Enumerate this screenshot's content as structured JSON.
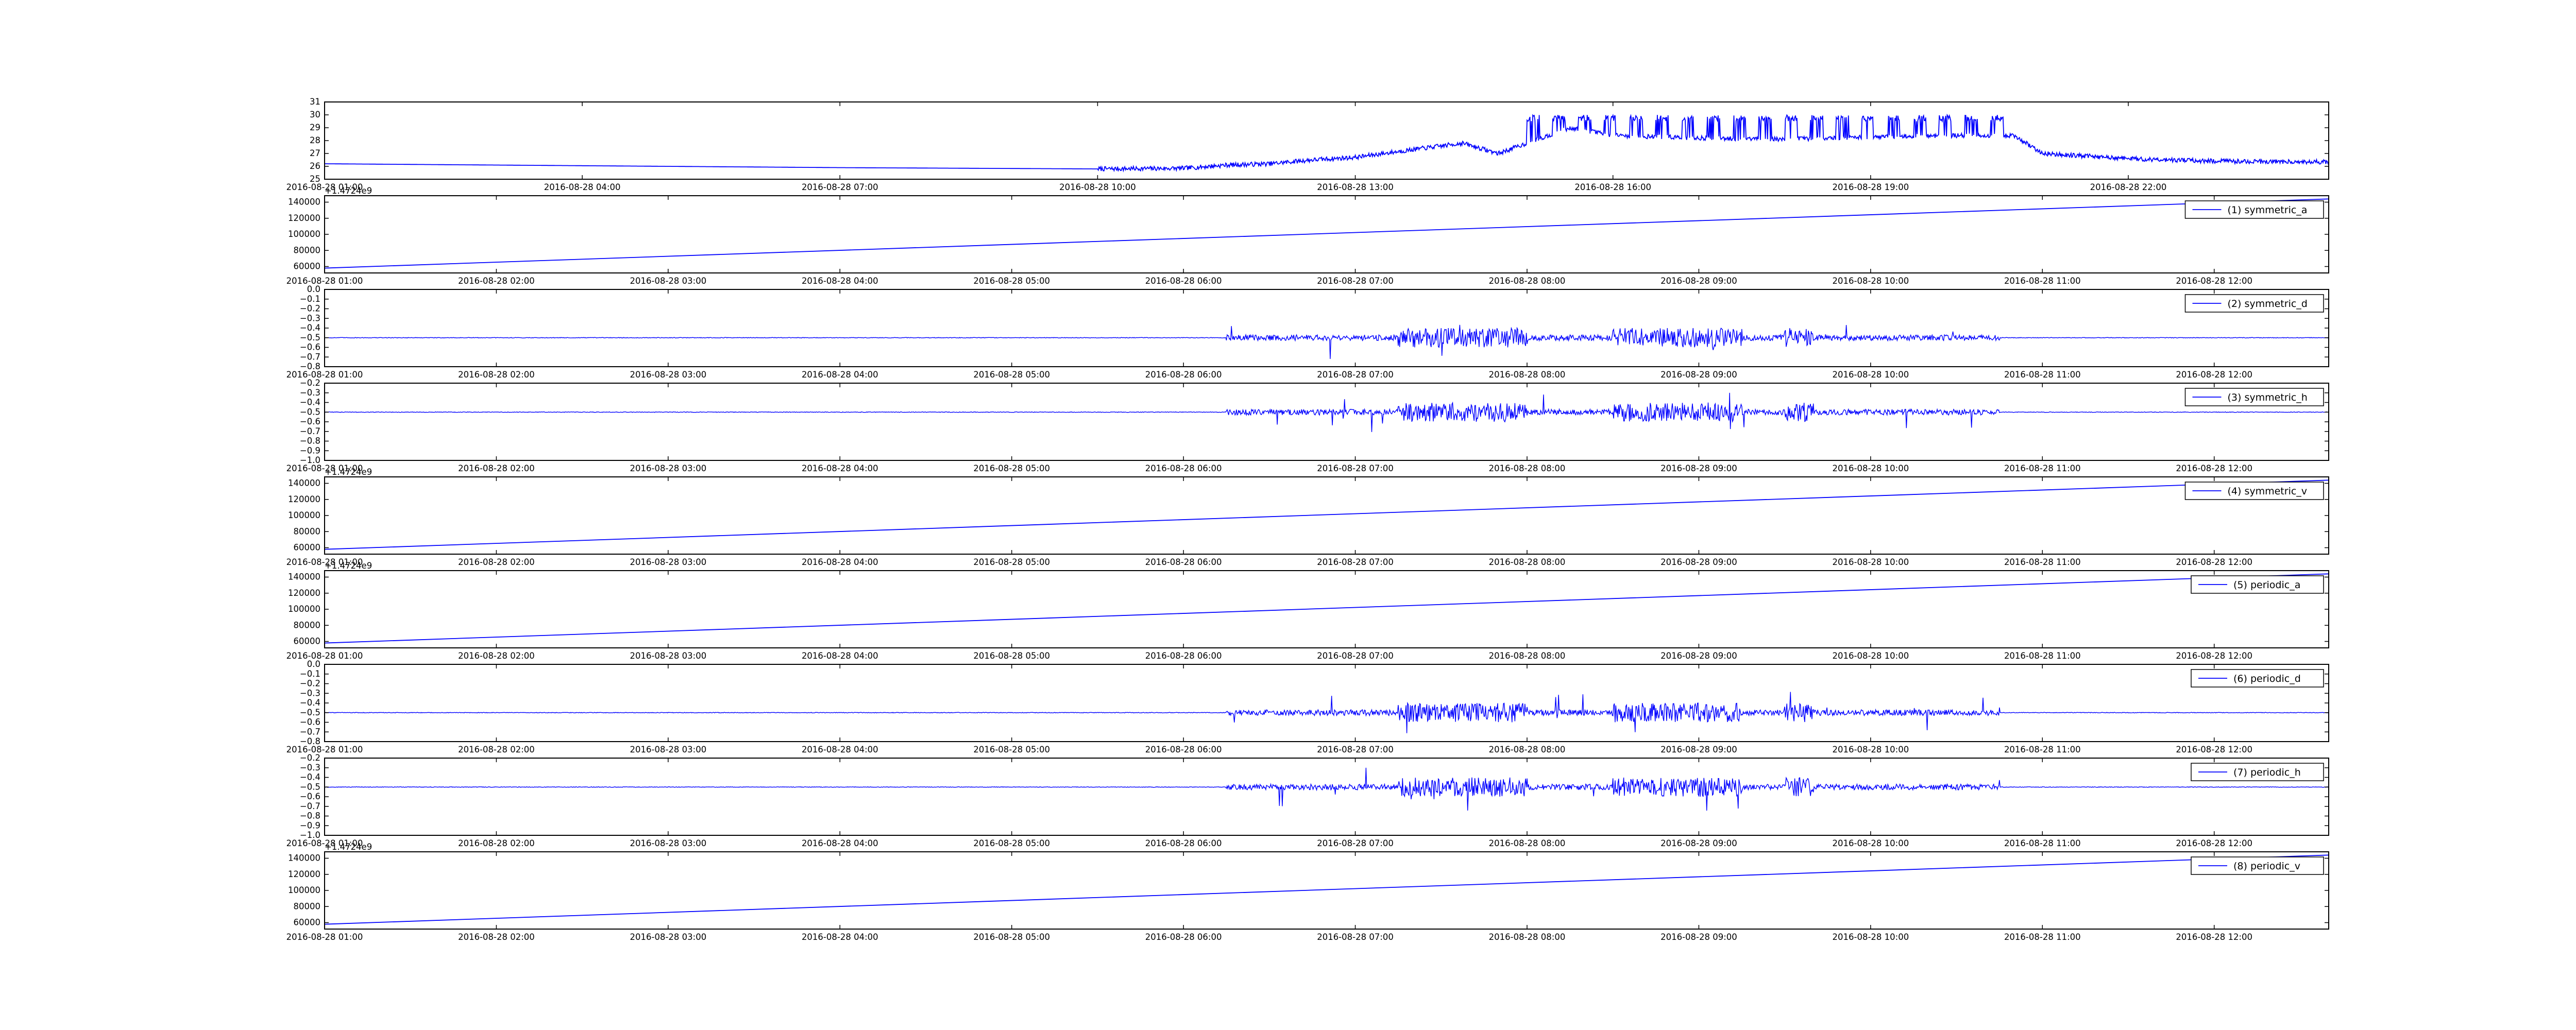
{
  "figure": {
    "line_color": "#0000ff",
    "background": "#ffffff",
    "axis_color": "#000000",
    "grid": false,
    "legend_loc": "upper right"
  },
  "chart_data": [
    {
      "type": "line",
      "series_name": "",
      "ylim": [
        25,
        31
      ],
      "yticks": [
        25,
        26,
        27,
        28,
        29,
        30,
        31
      ],
      "ytick_labels": [
        "25",
        "26",
        "27",
        "28",
        "29",
        "30",
        "31"
      ],
      "y_offset_label": "",
      "xlim": [
        "2016-08-28 01:00",
        "2016-08-28 24:20"
      ],
      "xticks": [
        "2016-08-28 01:00",
        "2016-08-28 04:00",
        "2016-08-28 07:00",
        "2016-08-28 10:00",
        "2016-08-28 13:00",
        "2016-08-28 16:00",
        "2016-08-28 19:00",
        "2016-08-28 22:00"
      ],
      "shape": "temperature",
      "points": [
        [
          "2016-08-28 01:00",
          26.2
        ],
        [
          "2016-08-28 04:00",
          26.05
        ],
        [
          "2016-08-28 07:00",
          25.9
        ],
        [
          "2016-08-28 10:00",
          25.8
        ],
        [
          "2016-08-28 11:00",
          25.85
        ],
        [
          "2016-08-28 11:30",
          26.1
        ],
        [
          "2016-08-28 12:00",
          26.2
        ],
        [
          "2016-08-28 12:30",
          26.5
        ],
        [
          "2016-08-28 13:00",
          26.7
        ],
        [
          "2016-08-28 13:40",
          27.3
        ],
        [
          "2016-08-28 14:15",
          27.8
        ],
        [
          "2016-08-28 14:40",
          27.0
        ],
        [
          "2016-08-28 15:30",
          29.0
        ],
        [
          "2016-08-28 16:00",
          28.4
        ],
        [
          "2016-08-28 17:00",
          28.2
        ],
        [
          "2016-08-28 18:00",
          28.1
        ],
        [
          "2016-08-28 19:00",
          28.3
        ],
        [
          "2016-08-28 20:00",
          28.4
        ],
        [
          "2016-08-28 20:40",
          28.4
        ],
        [
          "2016-08-28 21:00",
          27.0
        ],
        [
          "2016-08-28 22:00",
          26.6
        ],
        [
          "2016-08-28 23:00",
          26.4
        ],
        [
          "2016-08-28 24:20",
          26.35
        ]
      ],
      "spike_window": [
        "2016-08-28 15:00",
        "2016-08-28 20:40"
      ],
      "spike_peak": 30.0
    },
    {
      "type": "line",
      "series_name": "(1) symmetric_a",
      "ylim": [
        52000,
        148000
      ],
      "yticks": [
        60000,
        80000,
        100000,
        120000,
        140000
      ],
      "ytick_labels": [
        "60000",
        "80000",
        "100000",
        "120000",
        "140000"
      ],
      "y_offset_label": "+1.4724e9",
      "xlim": [
        "2016-08-28 01:00",
        "2016-08-28 12:40"
      ],
      "xticks": [
        "2016-08-28 01:00",
        "2016-08-28 02:00",
        "2016-08-28 03:00",
        "2016-08-28 04:00",
        "2016-08-28 05:00",
        "2016-08-28 06:00",
        "2016-08-28 07:00",
        "2016-08-28 08:00",
        "2016-08-28 09:00",
        "2016-08-28 10:00",
        "2016-08-28 11:00",
        "2016-08-28 12:00"
      ],
      "shape": "ramp",
      "points": [
        [
          "2016-08-28 01:00",
          58000
        ],
        [
          "2016-08-28 12:40",
          144000
        ]
      ]
    },
    {
      "type": "line",
      "series_name": "(2) symmetric_d",
      "ylim": [
        -0.8,
        0.0
      ],
      "yticks": [
        -0.8,
        -0.7,
        -0.6,
        -0.5,
        -0.4,
        -0.3,
        -0.2,
        -0.1,
        0.0
      ],
      "ytick_labels": [
        "−0.8",
        "−0.7",
        "−0.6",
        "−0.5",
        "−0.4",
        "−0.3",
        "−0.2",
        "−0.1",
        "0.0"
      ],
      "y_offset_label": "",
      "xlim": [
        "2016-08-28 01:00",
        "2016-08-28 12:40"
      ],
      "xticks": [
        "2016-08-28 01:00",
        "2016-08-28 02:00",
        "2016-08-28 03:00",
        "2016-08-28 04:00",
        "2016-08-28 05:00",
        "2016-08-28 06:00",
        "2016-08-28 07:00",
        "2016-08-28 08:00",
        "2016-08-28 09:00",
        "2016-08-28 10:00",
        "2016-08-28 11:00",
        "2016-08-28 12:00"
      ],
      "shape": "noise",
      "baseline": -0.5,
      "noise_window": [
        "2016-08-28 06:15",
        "2016-08-28 10:45"
      ],
      "range": [
        -0.72,
        -0.12
      ]
    },
    {
      "type": "line",
      "series_name": "(3) symmetric_h",
      "ylim": [
        -1.0,
        -0.2
      ],
      "yticks": [
        -1.0,
        -0.9,
        -0.8,
        -0.7,
        -0.6,
        -0.5,
        -0.4,
        -0.3,
        -0.2
      ],
      "ytick_labels": [
        "−1.0",
        "−0.9",
        "−0.8",
        "−0.7",
        "−0.6",
        "−0.5",
        "−0.4",
        "−0.3",
        "−0.2"
      ],
      "y_offset_label": "",
      "xlim": [
        "2016-08-28 01:00",
        "2016-08-28 12:40"
      ],
      "xticks": [
        "2016-08-28 01:00",
        "2016-08-28 02:00",
        "2016-08-28 03:00",
        "2016-08-28 04:00",
        "2016-08-28 05:00",
        "2016-08-28 06:00",
        "2016-08-28 07:00",
        "2016-08-28 08:00",
        "2016-08-28 09:00",
        "2016-08-28 10:00",
        "2016-08-28 11:00",
        "2016-08-28 12:00"
      ],
      "shape": "noise",
      "baseline": -0.5,
      "noise_window": [
        "2016-08-28 06:15",
        "2016-08-28 10:45"
      ],
      "range": [
        -0.95,
        -0.3
      ]
    },
    {
      "type": "line",
      "series_name": "(4) symmetric_v",
      "ylim": [
        52000,
        148000
      ],
      "yticks": [
        60000,
        80000,
        100000,
        120000,
        140000
      ],
      "ytick_labels": [
        "60000",
        "80000",
        "100000",
        "120000",
        "140000"
      ],
      "y_offset_label": "+1.4724e9",
      "xlim": [
        "2016-08-28 01:00",
        "2016-08-28 12:40"
      ],
      "xticks": [
        "2016-08-28 01:00",
        "2016-08-28 02:00",
        "2016-08-28 03:00",
        "2016-08-28 04:00",
        "2016-08-28 05:00",
        "2016-08-28 06:00",
        "2016-08-28 07:00",
        "2016-08-28 08:00",
        "2016-08-28 09:00",
        "2016-08-28 10:00",
        "2016-08-28 11:00",
        "2016-08-28 12:00"
      ],
      "shape": "ramp",
      "points": [
        [
          "2016-08-28 01:00",
          58000
        ],
        [
          "2016-08-28 12:40",
          144000
        ]
      ]
    },
    {
      "type": "line",
      "series_name": "(5) periodic_a",
      "ylim": [
        52000,
        148000
      ],
      "yticks": [
        60000,
        80000,
        100000,
        120000,
        140000
      ],
      "ytick_labels": [
        "60000",
        "80000",
        "100000",
        "120000",
        "140000"
      ],
      "y_offset_label": "+1.4724e9",
      "xlim": [
        "2016-08-28 01:00",
        "2016-08-28 12:40"
      ],
      "xticks": [
        "2016-08-28 01:00",
        "2016-08-28 02:00",
        "2016-08-28 03:00",
        "2016-08-28 04:00",
        "2016-08-28 05:00",
        "2016-08-28 06:00",
        "2016-08-28 07:00",
        "2016-08-28 08:00",
        "2016-08-28 09:00",
        "2016-08-28 10:00",
        "2016-08-28 11:00",
        "2016-08-28 12:00"
      ],
      "shape": "ramp",
      "points": [
        [
          "2016-08-28 01:00",
          58000
        ],
        [
          "2016-08-28 12:40",
          144000
        ]
      ]
    },
    {
      "type": "line",
      "series_name": "(6) periodic_d",
      "ylim": [
        -0.8,
        0.0
      ],
      "yticks": [
        -0.8,
        -0.7,
        -0.6,
        -0.5,
        -0.4,
        -0.3,
        -0.2,
        -0.1,
        0.0
      ],
      "ytick_labels": [
        "−0.8",
        "−0.7",
        "−0.6",
        "−0.5",
        "−0.4",
        "−0.3",
        "−0.2",
        "−0.1",
        "0.0"
      ],
      "y_offset_label": "",
      "xlim": [
        "2016-08-28 01:00",
        "2016-08-28 12:40"
      ],
      "xticks": [
        "2016-08-28 01:00",
        "2016-08-28 02:00",
        "2016-08-28 03:00",
        "2016-08-28 04:00",
        "2016-08-28 05:00",
        "2016-08-28 06:00",
        "2016-08-28 07:00",
        "2016-08-28 08:00",
        "2016-08-28 09:00",
        "2016-08-28 10:00",
        "2016-08-28 11:00",
        "2016-08-28 12:00"
      ],
      "shape": "noise",
      "baseline": -0.5,
      "noise_window": [
        "2016-08-28 06:15",
        "2016-08-28 10:45"
      ],
      "range": [
        -0.72,
        -0.12
      ]
    },
    {
      "type": "line",
      "series_name": "(7) periodic_h",
      "ylim": [
        -1.0,
        -0.2
      ],
      "yticks": [
        -1.0,
        -0.9,
        -0.8,
        -0.7,
        -0.6,
        -0.5,
        -0.4,
        -0.3,
        -0.2
      ],
      "ytick_labels": [
        "−1.0",
        "−0.9",
        "−0.8",
        "−0.7",
        "−0.6",
        "−0.5",
        "−0.4",
        "−0.3",
        "−0.2"
      ],
      "y_offset_label": "",
      "xlim": [
        "2016-08-28 01:00",
        "2016-08-28 12:40"
      ],
      "xticks": [
        "2016-08-28 01:00",
        "2016-08-28 02:00",
        "2016-08-28 03:00",
        "2016-08-28 04:00",
        "2016-08-28 05:00",
        "2016-08-28 06:00",
        "2016-08-28 07:00",
        "2016-08-28 08:00",
        "2016-08-28 09:00",
        "2016-08-28 10:00",
        "2016-08-28 11:00",
        "2016-08-28 12:00"
      ],
      "shape": "noise",
      "baseline": -0.5,
      "noise_window": [
        "2016-08-28 06:15",
        "2016-08-28 10:45"
      ],
      "range": [
        -0.95,
        -0.3
      ]
    },
    {
      "type": "line",
      "series_name": "(8) periodic_v",
      "ylim": [
        52000,
        148000
      ],
      "yticks": [
        60000,
        80000,
        100000,
        120000,
        140000
      ],
      "ytick_labels": [
        "60000",
        "80000",
        "100000",
        "120000",
        "140000"
      ],
      "y_offset_label": "+1.4724e9",
      "xlim": [
        "2016-08-28 01:00",
        "2016-08-28 12:40"
      ],
      "xticks": [
        "2016-08-28 01:00",
        "2016-08-28 02:00",
        "2016-08-28 03:00",
        "2016-08-28 04:00",
        "2016-08-28 05:00",
        "2016-08-28 06:00",
        "2016-08-28 07:00",
        "2016-08-28 08:00",
        "2016-08-28 09:00",
        "2016-08-28 10:00",
        "2016-08-28 11:00",
        "2016-08-28 12:00"
      ],
      "shape": "ramp",
      "points": [
        [
          "2016-08-28 01:00",
          58000
        ],
        [
          "2016-08-28 12:40",
          144000
        ]
      ]
    }
  ]
}
